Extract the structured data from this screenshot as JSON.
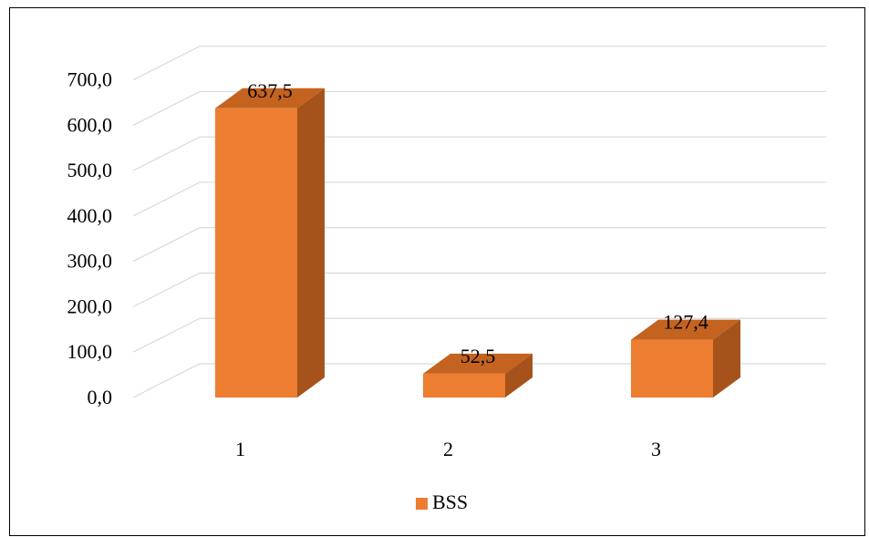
{
  "chart_data": {
    "type": "bar",
    "style": "3d-column",
    "categories": [
      "1",
      "2",
      "3"
    ],
    "series": [
      {
        "name": "BSS",
        "values": [
          637.5,
          52.5,
          127.4
        ],
        "color": "#ED7D31"
      }
    ],
    "data_labels": [
      "637,5",
      "52,5",
      "127,4"
    ],
    "y_ticks": [
      "0,0",
      "100,0",
      "200,0",
      "300,0",
      "400,0",
      "500,0",
      "600,0",
      "700,0"
    ],
    "ylim": [
      0,
      700
    ],
    "grid": true,
    "legend": {
      "position": "bottom",
      "entries": [
        "BSS"
      ]
    },
    "colors": {
      "front": "#ED7D31",
      "side": "#A5531B",
      "top": "#C4631F",
      "grid": "#D9D9D9"
    }
  }
}
